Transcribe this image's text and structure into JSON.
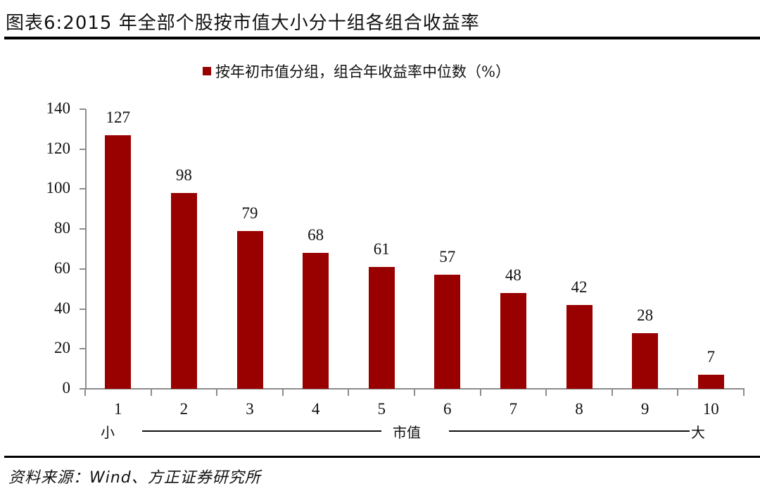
{
  "header": {
    "title": "图表6:2015 年全部个股按市值大小分十组各组合收益率"
  },
  "legend": {
    "label": "按年初市值分组，组合年收益率中位数（%）",
    "color": "#990000"
  },
  "axis": {
    "y_ticks": [
      "0",
      "20",
      "40",
      "60",
      "80",
      "100",
      "120",
      "140"
    ],
    "x_ticks": [
      "1",
      "2",
      "3",
      "4",
      "5",
      "6",
      "7",
      "8",
      "9",
      "10"
    ],
    "scale_small": "小",
    "scale_mid": "市值",
    "scale_large": "大"
  },
  "bar_labels": [
    "127",
    "98",
    "79",
    "68",
    "61",
    "57",
    "48",
    "42",
    "28",
    "7"
  ],
  "footer": {
    "source": "资料来源：Wind、方正证券研究所"
  },
  "chart_data": {
    "type": "bar",
    "title": "图表6:2015 年全部个股按市值大小分十组各组合收益率",
    "categories": [
      "1",
      "2",
      "3",
      "4",
      "5",
      "6",
      "7",
      "8",
      "9",
      "10"
    ],
    "series": [
      {
        "name": "按年初市值分组，组合年收益率中位数（%）",
        "values": [
          127,
          98,
          79,
          68,
          61,
          57,
          48,
          42,
          28,
          7
        ],
        "color": "#990000"
      }
    ],
    "xlabel": "市值（小 → 大）",
    "ylabel": "",
    "ylim": [
      0,
      140
    ],
    "y_ticks": [
      0,
      20,
      40,
      60,
      80,
      100,
      120,
      140
    ],
    "grid": false,
    "legend_position": "top",
    "data_labels": true
  }
}
